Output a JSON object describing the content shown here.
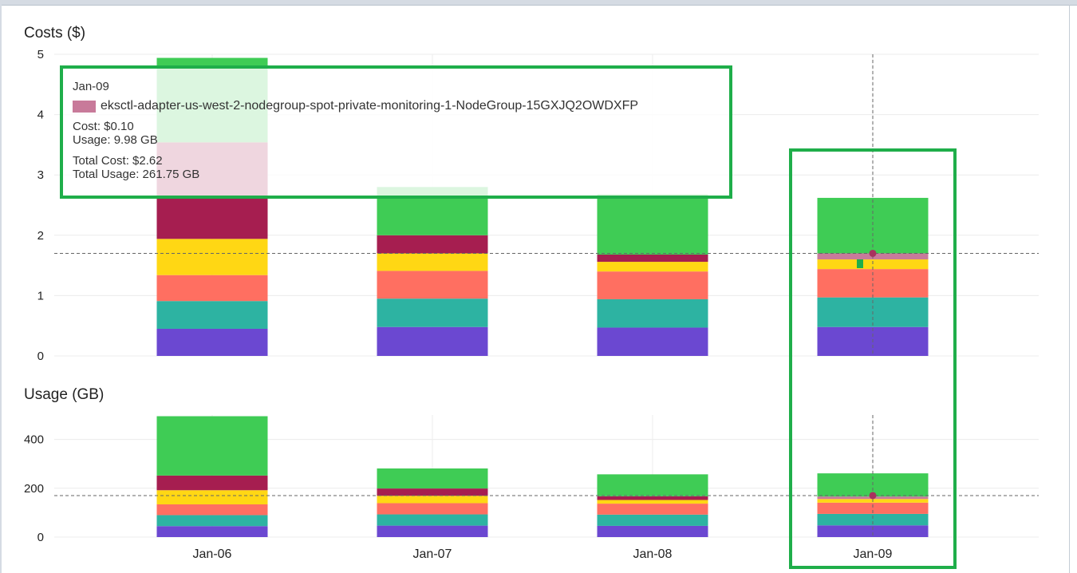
{
  "chart_data": [
    {
      "type": "bar",
      "stacked": true,
      "title": "Costs ($)",
      "categories": [
        "Jan-06",
        "Jan-07",
        "Jan-08",
        "Jan-09"
      ],
      "ylim": [
        0,
        5
      ],
      "yticks": [
        0,
        1,
        2,
        3,
        4,
        5
      ],
      "grid": true,
      "series": [
        {
          "color": "#6b48d1",
          "values": [
            0.45,
            0.48,
            0.47,
            0.48
          ]
        },
        {
          "color": "#2db3a2",
          "values": [
            0.46,
            0.47,
            0.47,
            0.49
          ]
        },
        {
          "color": "#ff6f61",
          "values": [
            0.43,
            0.46,
            0.46,
            0.47
          ]
        },
        {
          "color": "#ffd714",
          "values": [
            0.6,
            0.29,
            0.16,
            0.16
          ]
        },
        {
          "color": "#a61e50",
          "values": [
            1.6,
            0.3,
            0.12,
            0.0
          ]
        },
        {
          "name": "eksctl-adapter-us-west-2-nodegroup-spot-private-monitoring-1-NodeGroup-15GXJQ2OWDXFP",
          "color": "#c87a9a",
          "values": [
            0.0,
            0.0,
            0.0,
            0.1
          ]
        },
        {
          "color": "#3fcc55",
          "values": [
            1.4,
            0.8,
            1.0,
            0.92
          ]
        }
      ]
    },
    {
      "type": "bar",
      "stacked": true,
      "title": "Usage (GB)",
      "categories": [
        "Jan-06",
        "Jan-07",
        "Jan-08",
        "Jan-09"
      ],
      "ylim": [
        0,
        500
      ],
      "yticks": [
        0,
        200,
        400
      ],
      "grid": true,
      "series": [
        {
          "color": "#6b48d1",
          "values": [
            45,
            47,
            46,
            48
          ]
        },
        {
          "color": "#2db3a2",
          "values": [
            45,
            46,
            46,
            47
          ]
        },
        {
          "color": "#ff6f61",
          "values": [
            44,
            46,
            45,
            46
          ]
        },
        {
          "color": "#ffd714",
          "values": [
            58,
            30,
            15,
            15
          ]
        },
        {
          "color": "#a61e50",
          "values": [
            60,
            30,
            15,
            0
          ]
        },
        {
          "name": "eksctl-adapter-us-west-2-nodegroup-spot-private-monitoring-1-NodeGroup-15GXJQ2OWDXFP",
          "color": "#c87a9a",
          "values": [
            0,
            0,
            0,
            10
          ]
        },
        {
          "color": "#3fcc55",
          "values": [
            243,
            82,
            90,
            95
          ]
        }
      ]
    }
  ],
  "tooltip": {
    "date": "Jan-09",
    "series_name": "eksctl-adapter-us-west-2-nodegroup-spot-private-monitoring-1-NodeGroup-15GXJQ2OWDXFP",
    "swatch_color": "#c87a9a",
    "cost": "Cost: $0.10",
    "usage": "Usage: 9.98 GB",
    "total_cost": "Total Cost: $2.62",
    "total_usage": "Total Usage: 261.75 GB"
  },
  "hover": {
    "category": "Jan-09",
    "cost_value": 1.7,
    "usage_value": 170
  }
}
